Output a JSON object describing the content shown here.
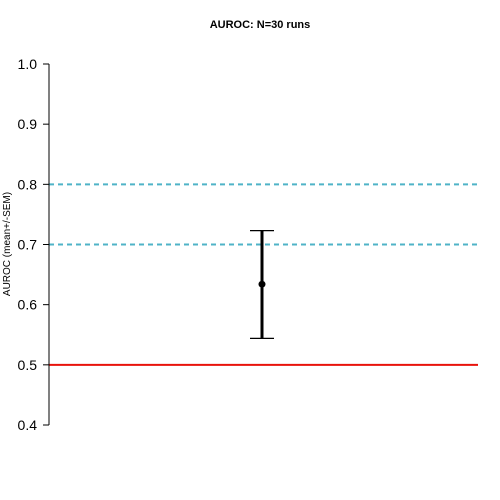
{
  "chart_data": {
    "type": "scatter",
    "title": "AUROC: N=30 runs",
    "xlabel": "",
    "ylabel": "AUROC (mean+/-SEM)",
    "ylim": [
      0.4,
      1.0
    ],
    "y_ticks": [
      "0.4",
      "0.5",
      "0.6",
      "0.7",
      "0.8",
      "0.9",
      "1.0"
    ],
    "grid": false,
    "points": [
      {
        "mean": 0.634,
        "lower": 0.544,
        "upper": 0.723
      }
    ],
    "reference_lines": [
      {
        "y": 0.5,
        "style": "solid",
        "color": "#e8130b"
      },
      {
        "y": 0.7,
        "style": "dashed",
        "color": "#4fb3c7"
      },
      {
        "y": 0.8,
        "style": "dashed",
        "color": "#4fb3c7"
      }
    ],
    "colors": {
      "point": "#000000",
      "axis": "#000000"
    }
  }
}
